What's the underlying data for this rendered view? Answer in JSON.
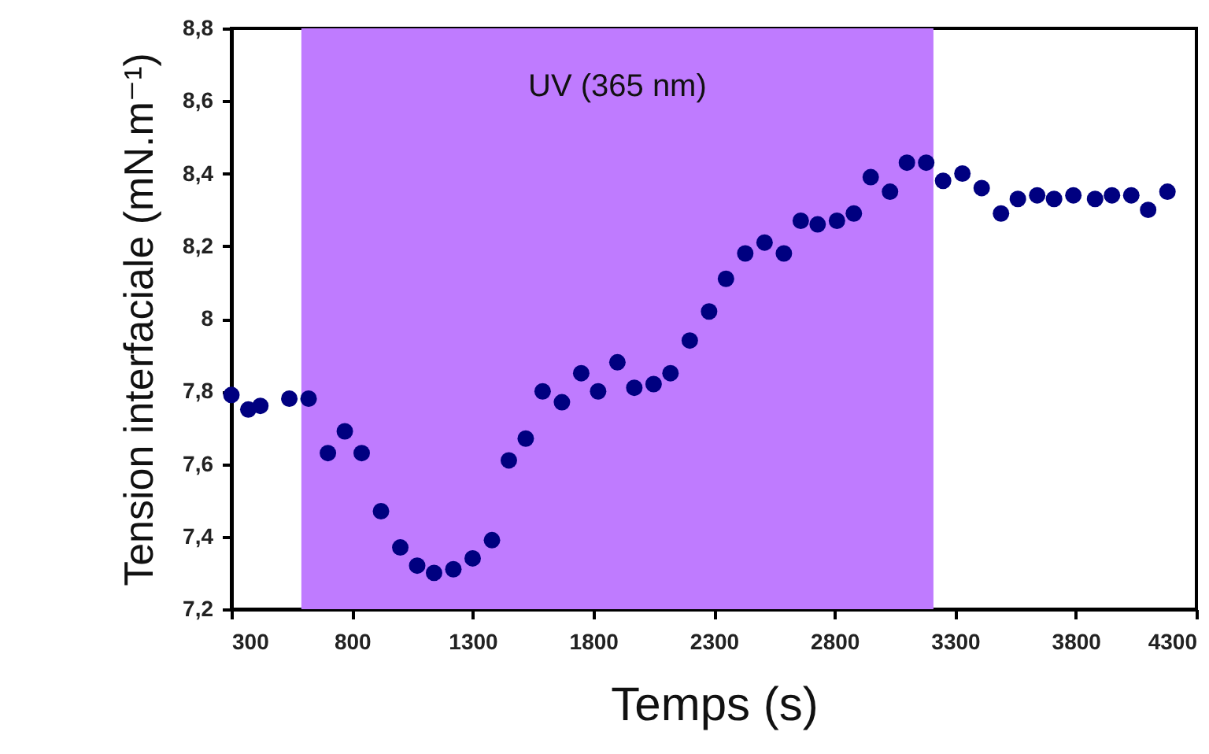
{
  "chart_data": {
    "type": "scatter",
    "xlabel": "Temps (s)",
    "ylabel": "Tension interfaciale (mN.m⁻¹)",
    "x": [
      300,
      370,
      420,
      540,
      620,
      700,
      770,
      840,
      920,
      1000,
      1070,
      1140,
      1220,
      1300,
      1380,
      1450,
      1520,
      1590,
      1670,
      1750,
      1820,
      1900,
      1970,
      2050,
      2120,
      2200,
      2280,
      2350,
      2430,
      2510,
      2590,
      2660,
      2730,
      2810,
      2880,
      2950,
      3030,
      3100,
      3180,
      3250,
      3330,
      3410,
      3490,
      3560,
      3640,
      3710,
      3790,
      3880,
      3950,
      4030,
      4100,
      4180
    ],
    "series": [
      {
        "color": "#000080",
        "values": [
          7.79,
          7.75,
          7.76,
          7.78,
          7.78,
          7.63,
          7.69,
          7.63,
          7.47,
          7.37,
          7.32,
          7.3,
          7.31,
          7.34,
          7.39,
          7.61,
          7.67,
          7.8,
          7.77,
          7.85,
          7.8,
          7.88,
          7.81,
          7.82,
          7.85,
          7.94,
          8.02,
          8.11,
          8.18,
          8.21,
          8.18,
          8.27,
          8.26,
          8.27,
          8.29,
          8.39,
          8.35,
          8.43,
          8.43,
          8.38,
          8.4,
          8.36,
          8.29,
          8.33,
          8.34,
          8.33,
          8.34,
          8.33,
          8.34,
          8.34,
          8.3,
          8.35
        ]
      }
    ],
    "xlim": [
      300,
      4300
    ],
    "xticks": [
      300,
      800,
      1300,
      1800,
      2300,
      2800,
      3300,
      3800,
      4300
    ],
    "ylim": [
      7.2,
      8.8
    ],
    "yticks": [
      {
        "value": 7.2,
        "label": "7,2"
      },
      {
        "value": 7.4,
        "label": "7,4"
      },
      {
        "value": 7.6,
        "label": "7,6"
      },
      {
        "value": 7.8,
        "label": "7,8"
      },
      8,
      {
        "value": 8.2,
        "label": "8,2"
      },
      {
        "value": 8.4,
        "label": "8,4"
      },
      {
        "value": 8.6,
        "label": "8,6"
      },
      {
        "value": 8.8,
        "label": "8,8"
      }
    ],
    "bands": [
      {
        "axis": "x",
        "from": 590,
        "to": 3210,
        "label": "UV (365 nm)",
        "color": "#bf7bff"
      }
    ],
    "marker": "circle",
    "grid": false
  }
}
